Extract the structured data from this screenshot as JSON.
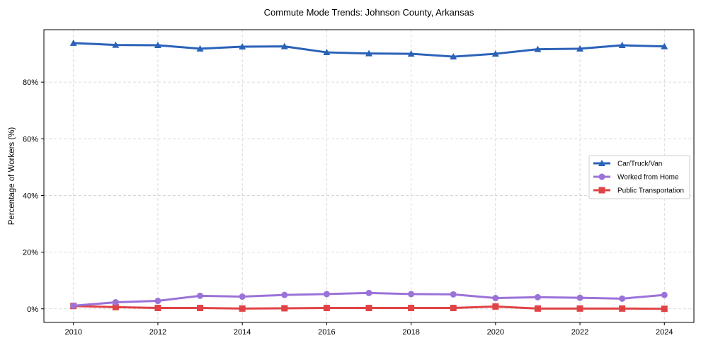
{
  "chart_data": {
    "type": "line",
    "title": "Commute Mode Trends: Johnson County, Arkansas",
    "xlabel": "",
    "ylabel": "Percentage of Workers (%)",
    "x": [
      2010,
      2011,
      2012,
      2013,
      2014,
      2015,
      2016,
      2017,
      2018,
      2019,
      2020,
      2021,
      2022,
      2023,
      2024
    ],
    "xticks": [
      "2010",
      "2012",
      "2014",
      "2016",
      "2018",
      "2020",
      "2022",
      "2024"
    ],
    "yticks": [
      "0%",
      "20%",
      "40%",
      "60%",
      "80%"
    ],
    "ylim": [
      -4.8,
      98.5
    ],
    "xlim": [
      2009.3,
      2024.7
    ],
    "grid": true,
    "legend_position": "center-right",
    "series": [
      {
        "name": "Car/Truck/Van",
        "color": "#2a62b8",
        "marker": "triangle",
        "values": [
          93.8,
          93.1,
          93.0,
          91.8,
          92.5,
          92.6,
          90.5,
          90.1,
          90.0,
          89.0,
          90.0,
          91.6,
          91.8,
          93.0,
          92.6
        ]
      },
      {
        "name": "Worked from Home",
        "color": "#9b72d8",
        "marker": "circle",
        "values": [
          1.1,
          2.3,
          2.8,
          4.6,
          4.3,
          4.9,
          5.2,
          5.6,
          5.2,
          5.1,
          3.8,
          4.1,
          3.9,
          3.6,
          4.9
        ]
      },
      {
        "name": "Public Transportation",
        "color": "#e04345",
        "marker": "square",
        "values": [
          1.0,
          0.6,
          0.3,
          0.3,
          0.1,
          0.2,
          0.3,
          0.3,
          0.3,
          0.3,
          0.8,
          0.1,
          0.1,
          0.1,
          0.0
        ]
      }
    ]
  }
}
